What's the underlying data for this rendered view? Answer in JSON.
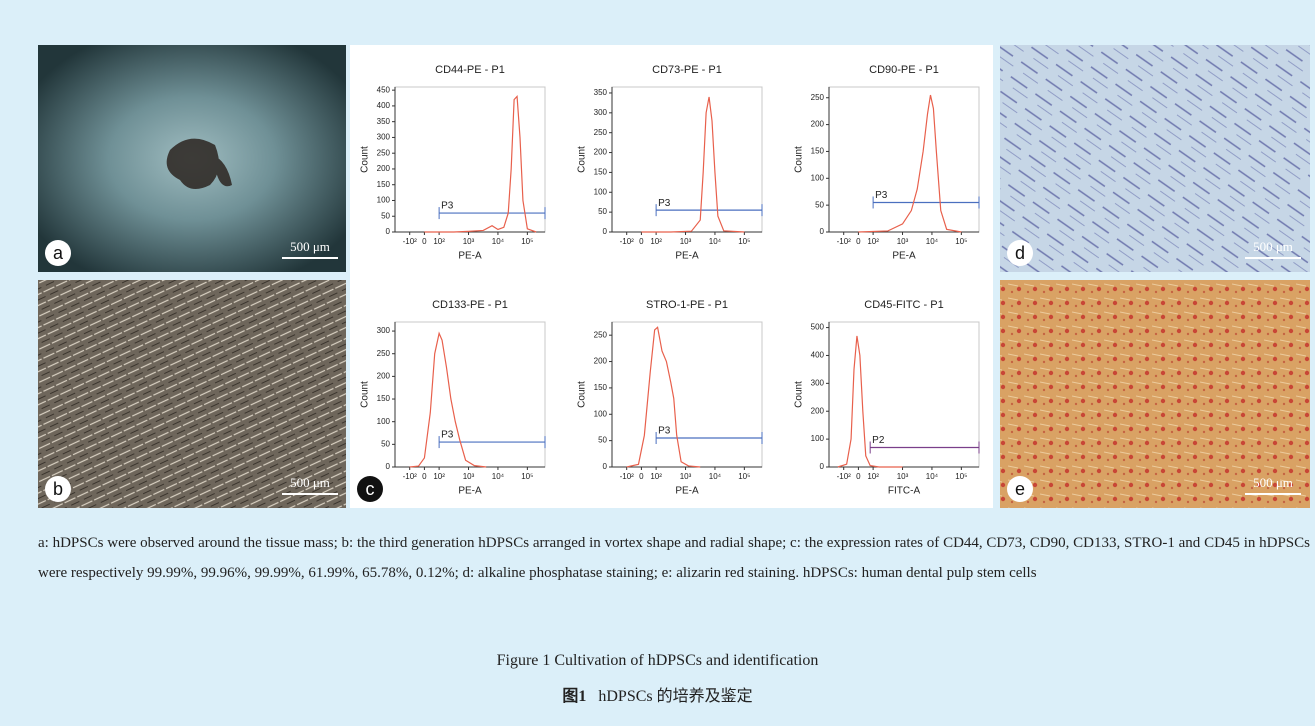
{
  "panels": [
    {
      "letter": "a",
      "scale_bar": "500 μm"
    },
    {
      "letter": "b",
      "scale_bar": "500 μm"
    },
    {
      "letter": "c"
    },
    {
      "letter": "d",
      "scale_bar": "500 μm"
    },
    {
      "letter": "e",
      "scale_bar": "500 μm"
    }
  ],
  "chart_data": [
    {
      "type": "histogram-line",
      "title": "CD44-PE - P1",
      "x_label": "PE-A",
      "y_label": "Count",
      "color": "#e8604c",
      "xlim": [
        -0.5,
        4.6
      ],
      "xticks": [
        {
          "value": 0,
          "label": "-10²"
        },
        {
          "value": 0.5,
          "label": "0"
        },
        {
          "value": 1,
          "label": "10²"
        },
        {
          "value": 2,
          "label": "10³"
        },
        {
          "value": 3,
          "label": "10⁴"
        },
        {
          "value": 4,
          "label": "10⁵"
        }
      ],
      "ylim": [
        0,
        460
      ],
      "yticks": [
        0,
        50,
        100,
        150,
        200,
        250,
        300,
        350,
        400,
        450
      ],
      "x": [
        0.5,
        1.5,
        2.0,
        2.5,
        2.8,
        3.0,
        3.2,
        3.35,
        3.45,
        3.55,
        3.65,
        3.75,
        3.85,
        4.0,
        4.3
      ],
      "values": [
        0,
        0,
        2,
        5,
        20,
        8,
        15,
        60,
        200,
        420,
        430,
        300,
        100,
        10,
        0
      ],
      "gate": {
        "label": "P3",
        "from": 1,
        "to": 4.6,
        "level": 60,
        "color": "#4a6fbf"
      }
    },
    {
      "type": "histogram-line",
      "title": "CD73-PE - P1",
      "x_label": "PE-A",
      "y_label": "Count",
      "color": "#e8604c",
      "xlim": [
        -0.5,
        4.6
      ],
      "xticks": [
        {
          "value": 0,
          "label": "-10²"
        },
        {
          "value": 0.5,
          "label": "0"
        },
        {
          "value": 1,
          "label": "10²"
        },
        {
          "value": 2,
          "label": "10³"
        },
        {
          "value": 3,
          "label": "10⁴"
        },
        {
          "value": 4,
          "label": "10⁵"
        }
      ],
      "ylim": [
        0,
        365
      ],
      "yticks": [
        0,
        50,
        100,
        150,
        200,
        250,
        300,
        350
      ],
      "x": [
        0.5,
        1.5,
        2.2,
        2.5,
        2.6,
        2.7,
        2.8,
        2.9,
        3.0,
        3.1,
        3.3,
        4.0
      ],
      "values": [
        0,
        0,
        2,
        30,
        150,
        300,
        340,
        280,
        150,
        40,
        3,
        0
      ],
      "gate": {
        "label": "P3",
        "from": 1,
        "to": 4.6,
        "level": 55,
        "color": "#4a6fbf"
      }
    },
    {
      "type": "histogram-line",
      "title": "CD90-PE - P1",
      "x_label": "PE-A",
      "y_label": "Count",
      "color": "#e8604c",
      "xlim": [
        -0.5,
        4.6
      ],
      "xticks": [
        {
          "value": 0,
          "label": "-10²"
        },
        {
          "value": 0.5,
          "label": "0"
        },
        {
          "value": 1,
          "label": "10²"
        },
        {
          "value": 2,
          "label": "10³"
        },
        {
          "value": 3,
          "label": "10⁴"
        },
        {
          "value": 4,
          "label": "10⁵"
        }
      ],
      "ylim": [
        0,
        270
      ],
      "yticks": [
        0,
        50,
        100,
        150,
        200,
        250
      ],
      "x": [
        0.5,
        1.5,
        2.0,
        2.3,
        2.5,
        2.7,
        2.85,
        2.95,
        3.05,
        3.15,
        3.3,
        3.5,
        4.0
      ],
      "values": [
        0,
        2,
        15,
        40,
        80,
        150,
        220,
        255,
        230,
        150,
        40,
        5,
        0
      ],
      "gate": {
        "label": "P3",
        "from": 1,
        "to": 4.6,
        "level": 55,
        "color": "#4a6fbf"
      }
    },
    {
      "type": "histogram-line",
      "title": "CD133-PE - P1",
      "x_label": "PE-A",
      "y_label": "Count",
      "color": "#e8604c",
      "xlim": [
        -0.5,
        4.6
      ],
      "xticks": [
        {
          "value": 0,
          "label": "-10²"
        },
        {
          "value": 0.5,
          "label": "0"
        },
        {
          "value": 1,
          "label": "10²"
        },
        {
          "value": 2,
          "label": "10³"
        },
        {
          "value": 3,
          "label": "10⁴"
        },
        {
          "value": 4,
          "label": "10⁵"
        }
      ],
      "ylim": [
        0,
        320
      ],
      "yticks": [
        0,
        50,
        100,
        150,
        200,
        250,
        300
      ],
      "x": [
        0,
        0.3,
        0.5,
        0.7,
        0.85,
        1.0,
        1.1,
        1.25,
        1.4,
        1.55,
        1.7,
        1.9,
        2.2,
        2.6
      ],
      "values": [
        0,
        2,
        20,
        120,
        250,
        295,
        280,
        220,
        150,
        100,
        60,
        15,
        3,
        0
      ],
      "gate": {
        "label": "P3",
        "from": 1,
        "to": 4.6,
        "level": 55,
        "color": "#4a6fbf"
      }
    },
    {
      "type": "histogram-line",
      "title": "STRO-1-PE - P1",
      "x_label": "PE-A",
      "y_label": "Count",
      "color": "#e8604c",
      "xlim": [
        -0.5,
        4.6
      ],
      "xticks": [
        {
          "value": 0,
          "label": "-10²"
        },
        {
          "value": 0.5,
          "label": "0"
        },
        {
          "value": 1,
          "label": "10²"
        },
        {
          "value": 2,
          "label": "10³"
        },
        {
          "value": 3,
          "label": "10⁴"
        },
        {
          "value": 4,
          "label": "10⁵"
        }
      ],
      "ylim": [
        0,
        275
      ],
      "yticks": [
        0,
        50,
        100,
        150,
        200,
        250
      ],
      "x": [
        0,
        0.4,
        0.6,
        0.8,
        0.95,
        1.05,
        1.2,
        1.35,
        1.5,
        1.6,
        1.7,
        1.85,
        2.1,
        2.5
      ],
      "values": [
        0,
        5,
        60,
        180,
        260,
        265,
        220,
        200,
        160,
        130,
        60,
        10,
        2,
        0
      ],
      "gate": {
        "label": "P3",
        "from": 1,
        "to": 4.6,
        "level": 55,
        "color": "#4a6fbf"
      }
    },
    {
      "type": "histogram-line",
      "title": "CD45-FITC - P1",
      "x_label": "FITC-A",
      "y_label": "Count",
      "color": "#e8604c",
      "xlim": [
        -0.5,
        4.6
      ],
      "xticks": [
        {
          "value": 0,
          "label": "-10²"
        },
        {
          "value": 0.5,
          "label": "0"
        },
        {
          "value": 1,
          "label": "10²"
        },
        {
          "value": 2,
          "label": "10³"
        },
        {
          "value": 3,
          "label": "10⁴"
        },
        {
          "value": 4,
          "label": "10⁵"
        }
      ],
      "ylim": [
        0,
        520
      ],
      "yticks": [
        0,
        100,
        200,
        300,
        400,
        500
      ],
      "x": [
        -0.2,
        0.1,
        0.25,
        0.35,
        0.45,
        0.55,
        0.65,
        0.75,
        0.9,
        1.2,
        2.0
      ],
      "values": [
        0,
        10,
        100,
        350,
        470,
        400,
        200,
        40,
        5,
        0,
        0
      ],
      "gate": {
        "label": "P2",
        "from": 0.9,
        "to": 4.6,
        "level": 70,
        "color": "#7a3f8a"
      }
    }
  ],
  "caption": "a: hDPSCs were observed around the tissue mass; b: the third generation hDPSCs arranged in vortex shape and radial shape; c: the expression rates of CD44, CD73, CD90, CD133, STRO-1 and CD45 in hDPSCs were respectively 99.99%, 99.96%, 99.99%, 61.99%, 65.78%, 0.12%; d: alkaline phosphatase staining; e: alizarin red staining. hDPSCs: human dental pulp stem cells",
  "figure_title_en": "Figure 1    Cultivation of hDPSCs and identification",
  "figure_title_zh_label": "图1",
  "figure_title_zh": "hDPSCs 的培养及鉴定"
}
